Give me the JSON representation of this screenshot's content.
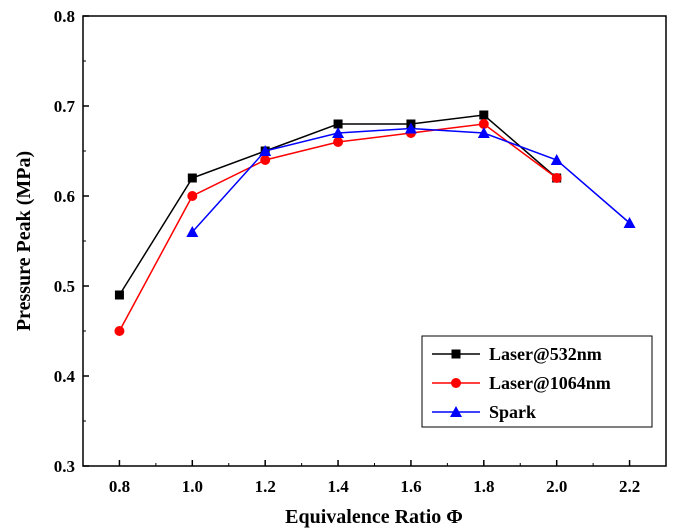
{
  "chart_data": {
    "type": "line",
    "title": "",
    "xlabel": "Equivalence Ratio  Φ",
    "ylabel": "Pressure Peak (MPa)",
    "xlim": [
      0.7,
      2.3
    ],
    "ylim": [
      0.3,
      0.8
    ],
    "xticks": [
      0.8,
      1.0,
      1.2,
      1.4,
      1.6,
      1.8,
      2.0,
      2.2
    ],
    "xtick_labels": [
      "0.8",
      "1.0",
      "1.2",
      "1.4",
      "1.6",
      "1.8",
      "2.0",
      "2.2"
    ],
    "yticks": [
      0.3,
      0.4,
      0.5,
      0.6,
      0.7,
      0.8
    ],
    "ytick_labels": [
      "0.3",
      "0.4",
      "0.5",
      "0.6",
      "0.7",
      "0.8"
    ],
    "grid": false,
    "legend_position": "bottom-right",
    "series": [
      {
        "name": "Laser@532nm",
        "color": "#000000",
        "marker": "square",
        "x": [
          0.8,
          1.0,
          1.2,
          1.4,
          1.6,
          1.8,
          2.0
        ],
        "y": [
          0.49,
          0.62,
          0.65,
          0.68,
          0.68,
          0.69,
          0.62
        ]
      },
      {
        "name": "Laser@1064nm",
        "color": "#ff0000",
        "marker": "circle",
        "x": [
          0.8,
          1.0,
          1.2,
          1.4,
          1.6,
          1.8,
          2.0
        ],
        "y": [
          0.45,
          0.6,
          0.64,
          0.66,
          0.67,
          0.68,
          0.62
        ]
      },
      {
        "name": "Spark",
        "color": "#0000ff",
        "marker": "triangle",
        "x": [
          1.0,
          1.2,
          1.4,
          1.6,
          1.8,
          2.0,
          2.2
        ],
        "y": [
          0.56,
          0.65,
          0.67,
          0.675,
          0.67,
          0.64,
          0.57
        ]
      }
    ]
  }
}
